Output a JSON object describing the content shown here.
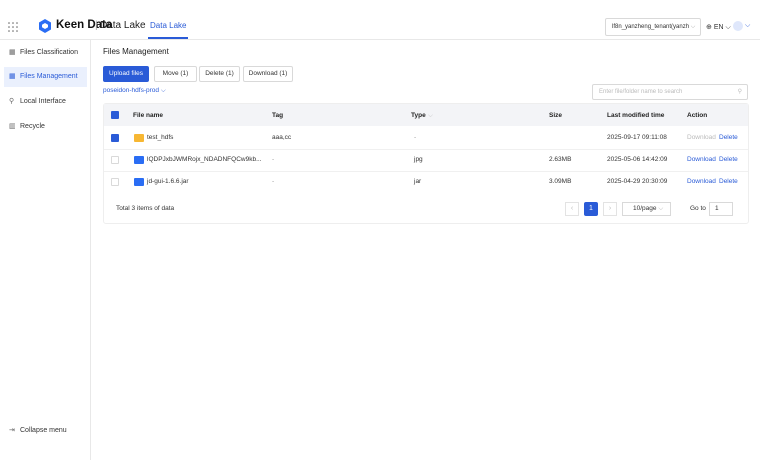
{
  "header": {
    "brand": "Keen Data",
    "product": "Data Lake",
    "tab": "Data Lake",
    "tenant": "lf8n_yanzheng_tenant(yanzh",
    "language": "EN"
  },
  "sidebar": {
    "items": [
      "Files Classification",
      "Files Management",
      "Local Interface",
      "Recycle"
    ],
    "collapse": "Collapse menu"
  },
  "main": {
    "title": "Files Management",
    "buttons": [
      "Upload files",
      "Move (1)",
      "Delete (1)",
      "Download (1)"
    ],
    "source": "poseidon-hdfs-prod",
    "search_placeholder": "Enter file/folder name to search",
    "table": {
      "columns": [
        "File name",
        "Tag",
        "Type",
        "Size",
        "Last modified time",
        "Action"
      ],
      "rows": [
        [
          "test_hdfs",
          "aaa,cc",
          "-",
          "",
          "2025-09-17 09:11:08",
          "Download",
          "Delete"
        ],
        [
          "lQDPJxbJWMRojx_NDADNFQCw9kb...",
          "-",
          "jpg",
          "2.63MB",
          "2025-05-06 14:42:09",
          "Download",
          "Delete"
        ],
        [
          "jd-gui-1.6.6.jar",
          "-",
          "jar",
          "3.09MB",
          "2025-04-29 20:30:09",
          "Download",
          "Delete"
        ]
      ]
    },
    "footer": {
      "total": "Total 3 items of data",
      "page": "1",
      "page_size": "10/page",
      "goto": "Go to",
      "goto_value": "1"
    }
  }
}
